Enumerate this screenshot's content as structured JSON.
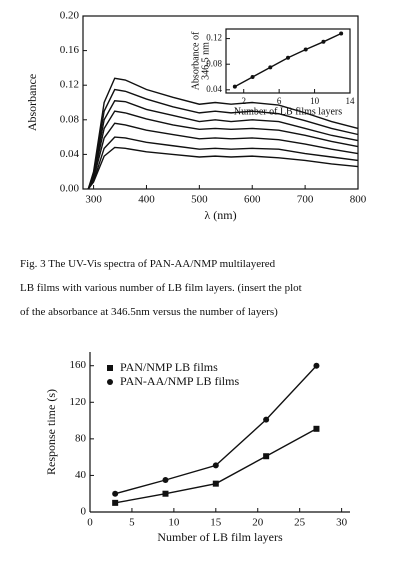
{
  "chart_data": [
    {
      "type": "line",
      "xlabel": "λ (nm)",
      "ylabel": "Absorbance",
      "x": [
        290,
        300,
        320,
        340,
        360,
        400,
        450,
        500,
        530,
        560,
        600,
        650,
        700,
        750,
        800
      ],
      "xlim": [
        280,
        800
      ],
      "xticks": [
        300,
        400,
        500,
        600,
        700,
        800
      ],
      "ylim": [
        0,
        0.2
      ],
      "yticks": [
        {
          "value": 0,
          "label": "0.00"
        },
        0.04,
        0.08,
        0.12,
        0.16,
        {
          "value": 0.2,
          "label": "0.20"
        }
      ],
      "series": [
        {
          "color": "#111111",
          "values": [
            0,
            0.02,
            0.1,
            0.128,
            0.126,
            0.115,
            0.106,
            0.098,
            0.1,
            0.098,
            0.1,
            0.097,
            0.088,
            0.078,
            0.07
          ]
        },
        {
          "color": "#111111",
          "values": [
            0,
            0.018,
            0.09,
            0.115,
            0.113,
            0.104,
            0.095,
            0.088,
            0.09,
            0.088,
            0.09,
            0.087,
            0.079,
            0.07,
            0.063
          ]
        },
        {
          "color": "#111111",
          "values": [
            0,
            0.016,
            0.08,
            0.102,
            0.101,
            0.092,
            0.085,
            0.078,
            0.08,
            0.078,
            0.08,
            0.078,
            0.07,
            0.062,
            0.056
          ]
        },
        {
          "color": "#111111",
          "values": [
            0,
            0.014,
            0.07,
            0.09,
            0.088,
            0.081,
            0.074,
            0.069,
            0.07,
            0.069,
            0.07,
            0.068,
            0.062,
            0.055,
            0.049
          ]
        },
        {
          "color": "#111111",
          "values": [
            0,
            0.012,
            0.059,
            0.076,
            0.074,
            0.068,
            0.063,
            0.058,
            0.059,
            0.058,
            0.059,
            0.057,
            0.052,
            0.046,
            0.041
          ]
        },
        {
          "color": "#111111",
          "values": [
            0,
            0.009,
            0.047,
            0.06,
            0.059,
            0.054,
            0.05,
            0.046,
            0.047,
            0.046,
            0.047,
            0.046,
            0.041,
            0.037,
            0.033
          ]
        },
        {
          "color": "#111111",
          "values": [
            0,
            0.008,
            0.038,
            0.048,
            0.047,
            0.043,
            0.04,
            0.037,
            0.038,
            0.037,
            0.038,
            0.036,
            0.033,
            0.029,
            0.026
          ]
        }
      ]
    },
    {
      "type": "line",
      "xlabel": "Number of LB films layers",
      "ylabel": [
        "Absorbance of",
        "346.5 nm"
      ],
      "x": [
        1,
        3,
        5,
        7,
        9,
        11,
        13
      ],
      "xlim": [
        0,
        14
      ],
      "xticks": [
        2,
        6,
        10,
        14
      ],
      "ylim": [
        0.035,
        0.135
      ],
      "yticks": [
        0.04,
        0.08,
        0.12
      ],
      "series": [
        {
          "color": "#111111",
          "marker": "circle",
          "values": [
            0.045,
            0.06,
            0.075,
            0.09,
            0.103,
            0.115,
            0.128
          ]
        }
      ]
    },
    {
      "type": "line",
      "xlabel": "Number of LB film layers",
      "ylabel": "Response time (s)",
      "x": [
        3,
        9,
        15,
        21,
        27
      ],
      "xlim": [
        0,
        31
      ],
      "xticks": [
        0,
        5,
        10,
        15,
        20,
        25,
        30
      ],
      "ylim": [
        0,
        175
      ],
      "yticks": [
        0,
        40,
        80,
        120,
        160
      ],
      "legend": "upper left",
      "series": [
        {
          "name": "PAN/NMP LB films",
          "color": "#111111",
          "marker": "square",
          "values": [
            10,
            20,
            31,
            61,
            91
          ]
        },
        {
          "name": "PAN-AA/NMP LB films",
          "color": "#111111",
          "marker": "circle",
          "values": [
            20,
            35,
            51,
            101,
            160
          ]
        }
      ]
    }
  ],
  "caption": [
    "Fig. 3   The UV-Vis spectra of PAN-AA/NMP multilayered",
    "LB films with various number of LB film layers. (insert the plot",
    "of the absorbance at 346.5nm versus the number of layers)"
  ]
}
